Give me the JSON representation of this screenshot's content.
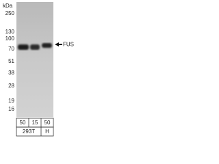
{
  "unit_label": "kDa",
  "markers": [
    250,
    130,
    100,
    70,
    51,
    38,
    28,
    19,
    16
  ],
  "target": "FUS",
  "lane_amounts": [
    50,
    15,
    50
  ],
  "cell_lines": [
    "293T",
    "H"
  ]
}
